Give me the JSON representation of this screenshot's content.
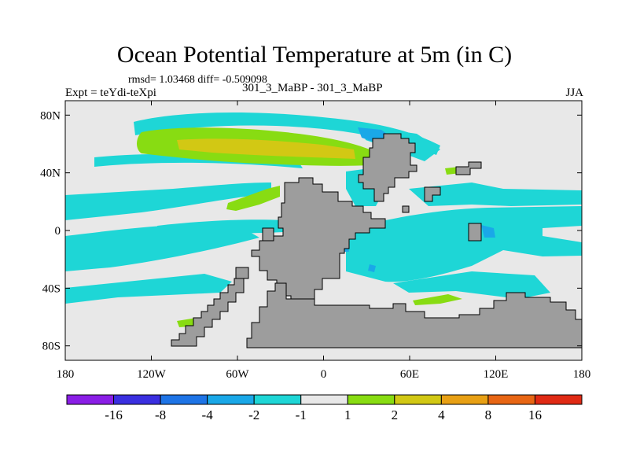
{
  "title": "Ocean Potential Temperature at 5m (in C)",
  "stats": "rmsd= 1.03468 diff= -0.509098",
  "expt": "Expt = teYdi-teXpi",
  "experiments": "301_3_MaBP - 301_3_MaBP",
  "season": "JJA",
  "map": {
    "lon_ticks": [
      "180",
      "120W",
      "60W",
      "0",
      "60E",
      "120E",
      "180"
    ],
    "lat_ticks": [
      "80N",
      "40N",
      "0",
      "40S",
      "80S"
    ],
    "lat_values": [
      80,
      40,
      0,
      -40,
      -80
    ],
    "lon_range": [
      -180,
      180
    ],
    "lat_range": [
      -90,
      90
    ]
  },
  "colorbar": {
    "labels": [
      "-16",
      "-8",
      "-4",
      "-2",
      "-1",
      "1",
      "2",
      "4",
      "8",
      "16"
    ],
    "colors": [
      "#8a1ee6",
      "#3a2fe0",
      "#1e74e6",
      "#1aa8e8",
      "#1ed6d6",
      "#e8e8e8",
      "#88dc12",
      "#d2c814",
      "#e8a014",
      "#e86614",
      "#e02a14"
    ]
  },
  "colors": {
    "land": "#9d9d9d",
    "background": "#e8e8e8",
    "cyan": "#1ed6d6",
    "lightblue": "#1aa8e8",
    "green": "#88dc12",
    "yellow": "#d2c814"
  }
}
